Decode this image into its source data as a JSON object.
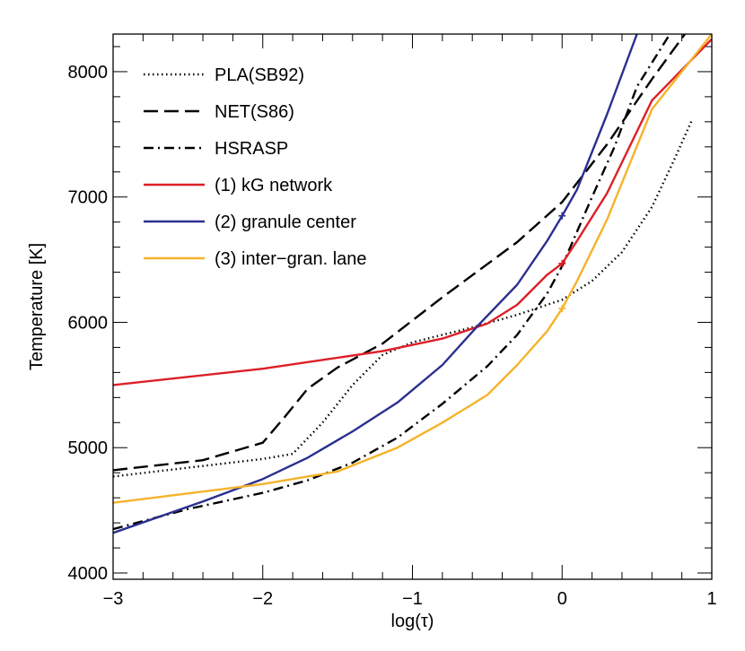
{
  "chart_data": {
    "type": "line",
    "title": "",
    "xlabel": "log(τ)",
    "ylabel": "Temperature [K]",
    "xlim": [
      -3,
      1
    ],
    "ylim": [
      3950,
      8300
    ],
    "x_ticks": [
      -3,
      -2,
      -1,
      0,
      1
    ],
    "x_tick_labels": [
      "−3",
      "−2",
      "−1",
      "0",
      "1"
    ],
    "y_ticks": [
      4000,
      5000,
      6000,
      7000,
      8000
    ],
    "y_tick_labels": [
      "4000",
      "5000",
      "6000",
      "7000",
      "8000"
    ],
    "grid": false,
    "legend_position": "top-left",
    "series": [
      {
        "name": "PLA(SB92)",
        "color": "#000000",
        "dash": "dotted",
        "points": [
          [
            -3.0,
            4770
          ],
          [
            -2.5,
            4840
          ],
          [
            -2.0,
            4910
          ],
          [
            -1.8,
            4950
          ],
          [
            -1.6,
            5200
          ],
          [
            -1.4,
            5500
          ],
          [
            -1.2,
            5740
          ],
          [
            -1.0,
            5840
          ],
          [
            -0.6,
            5960
          ],
          [
            -0.3,
            6060
          ],
          [
            0.0,
            6180
          ],
          [
            0.2,
            6330
          ],
          [
            0.4,
            6560
          ],
          [
            0.6,
            6920
          ],
          [
            0.75,
            7300
          ],
          [
            0.87,
            7620
          ]
        ]
      },
      {
        "name": "NET(S86)",
        "color": "#000000",
        "dash": "dashed",
        "points": [
          [
            -3.0,
            4820
          ],
          [
            -2.4,
            4900
          ],
          [
            -2.0,
            5040
          ],
          [
            -1.85,
            5250
          ],
          [
            -1.7,
            5470
          ],
          [
            -1.5,
            5640
          ],
          [
            -1.2,
            5830
          ],
          [
            -0.8,
            6200
          ],
          [
            -0.3,
            6640
          ],
          [
            0.0,
            6960
          ],
          [
            0.3,
            7420
          ],
          [
            0.6,
            7940
          ],
          [
            0.82,
            8300
          ]
        ]
      },
      {
        "name": "HSRASP",
        "color": "#000000",
        "dash": "dashdot",
        "points": [
          [
            -3.0,
            4350
          ],
          [
            -2.5,
            4510
          ],
          [
            -2.0,
            4640
          ],
          [
            -1.7,
            4740
          ],
          [
            -1.4,
            4880
          ],
          [
            -1.1,
            5080
          ],
          [
            -0.8,
            5350
          ],
          [
            -0.5,
            5650
          ],
          [
            -0.3,
            5900
          ],
          [
            -0.1,
            6230
          ],
          [
            0.0,
            6450
          ],
          [
            0.2,
            7000
          ],
          [
            0.35,
            7400
          ],
          [
            0.5,
            7880
          ],
          [
            0.72,
            8300
          ]
        ]
      },
      {
        "name": "(1) kG network",
        "color": "#dd1f26",
        "dash": "solid",
        "points": [
          [
            -3.0,
            5500
          ],
          [
            -2.0,
            5630
          ],
          [
            -1.2,
            5770
          ],
          [
            -0.8,
            5870
          ],
          [
            -0.5,
            5990
          ],
          [
            -0.3,
            6140
          ],
          [
            -0.1,
            6380
          ],
          [
            0.0,
            6470
          ],
          [
            0.1,
            6650
          ],
          [
            0.3,
            7030
          ],
          [
            0.6,
            7770
          ],
          [
            1.0,
            8260
          ]
        ]
      },
      {
        "name": "(2) granule center",
        "color": "#2b2f8f",
        "dash": "solid",
        "points": [
          [
            -3.0,
            4320
          ],
          [
            -2.4,
            4570
          ],
          [
            -2.0,
            4750
          ],
          [
            -1.7,
            4920
          ],
          [
            -1.4,
            5130
          ],
          [
            -1.1,
            5360
          ],
          [
            -0.8,
            5660
          ],
          [
            -0.55,
            5990
          ],
          [
            -0.3,
            6300
          ],
          [
            -0.1,
            6650
          ],
          [
            0.0,
            6850
          ],
          [
            0.1,
            7060
          ],
          [
            0.3,
            7660
          ],
          [
            0.5,
            8300
          ]
        ]
      },
      {
        "name": "(3) inter-gran. lane",
        "color": "#f5b32a",
        "dash": "solid",
        "points": [
          [
            -3.0,
            4560
          ],
          [
            -2.4,
            4650
          ],
          [
            -2.0,
            4710
          ],
          [
            -1.5,
            4810
          ],
          [
            -1.1,
            5000
          ],
          [
            -0.8,
            5200
          ],
          [
            -0.5,
            5420
          ],
          [
            -0.3,
            5660
          ],
          [
            -0.1,
            5930
          ],
          [
            0.0,
            6110
          ],
          [
            0.1,
            6330
          ],
          [
            0.3,
            6820
          ],
          [
            0.6,
            7700
          ],
          [
            0.8,
            8000
          ],
          [
            1.0,
            8300
          ]
        ]
      }
    ],
    "legend": [
      "PLA(SB92)",
      "NET(S86)",
      "HSRASP",
      "(1) kG network",
      "(2) granule center",
      "(3) inter−gran. lane"
    ]
  }
}
